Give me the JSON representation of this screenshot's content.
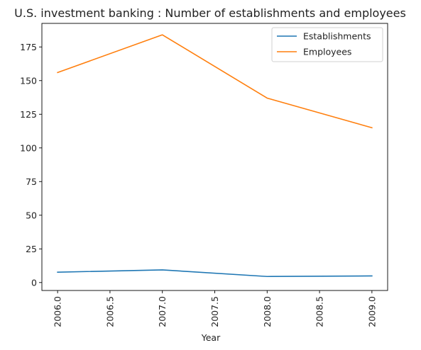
{
  "chart_data": {
    "type": "line",
    "title": "U.S. investment banking : Number of establishments and employees",
    "xlabel": "Year",
    "ylabel": "",
    "x": [
      2006,
      2007,
      2008,
      2009
    ],
    "xticks": [
      "2006.0",
      "2006.5",
      "2007.0",
      "2007.5",
      "2008.0",
      "2008.5",
      "2009.0"
    ],
    "xtick_values": [
      2006.0,
      2006.5,
      2007.0,
      2007.5,
      2008.0,
      2008.5,
      2009.0
    ],
    "yticks": [
      "0",
      "25",
      "50",
      "75",
      "100",
      "125",
      "150",
      "175"
    ],
    "ytick_values": [
      0,
      25,
      50,
      75,
      100,
      125,
      150,
      175
    ],
    "xlim": [
      2005.85,
      2009.15
    ],
    "ylim": [
      -5.9,
      192.5
    ],
    "grid": false,
    "legend_position": "top-right",
    "series": [
      {
        "name": "Establishments",
        "color": "#1f77b4",
        "values": [
          7.7,
          9.4,
          4.5,
          4.9
        ]
      },
      {
        "name": "Employees",
        "color": "#ff7f0e",
        "values": [
          156,
          184,
          137,
          115
        ]
      }
    ]
  }
}
